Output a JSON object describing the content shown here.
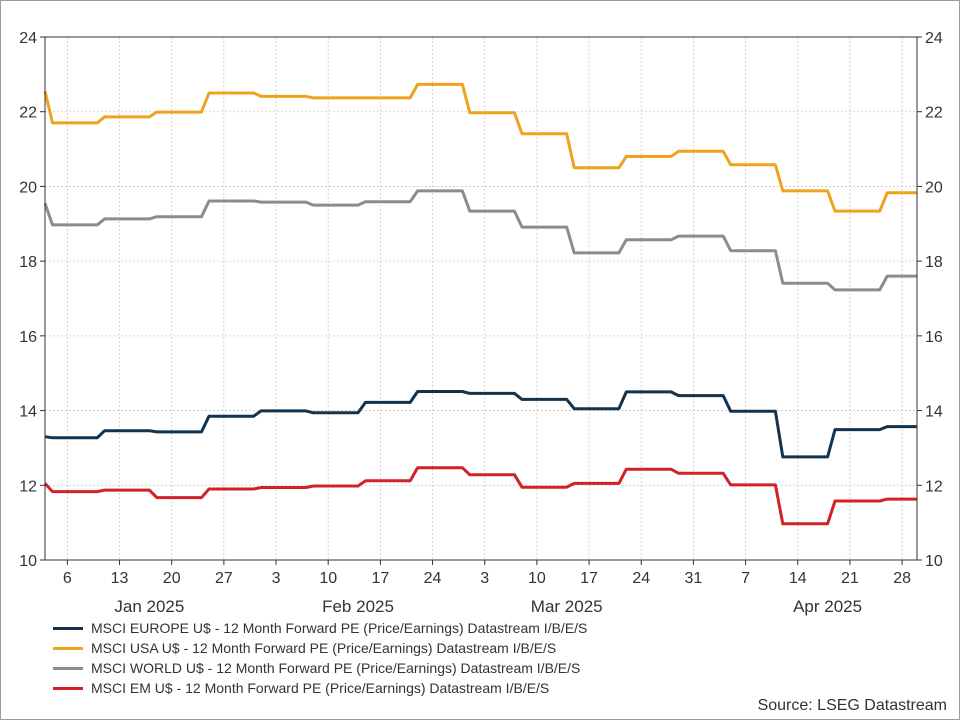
{
  "chart_data": {
    "type": "line",
    "ylim": [
      10,
      24
    ],
    "yticks": [
      10,
      12,
      14,
      16,
      18,
      20,
      22,
      24
    ],
    "xlim": [
      "2025-01-03",
      "2025-04-30"
    ],
    "x_day_ticks": [
      {
        "date": "2025-01-06",
        "label": "6"
      },
      {
        "date": "2025-01-13",
        "label": "13"
      },
      {
        "date": "2025-01-20",
        "label": "20"
      },
      {
        "date": "2025-01-27",
        "label": "27"
      },
      {
        "date": "2025-02-03",
        "label": "3"
      },
      {
        "date": "2025-02-10",
        "label": "10"
      },
      {
        "date": "2025-02-17",
        "label": "17"
      },
      {
        "date": "2025-02-24",
        "label": "24"
      },
      {
        "date": "2025-03-03",
        "label": "3"
      },
      {
        "date": "2025-03-10",
        "label": "10"
      },
      {
        "date": "2025-03-17",
        "label": "17"
      },
      {
        "date": "2025-03-24",
        "label": "24"
      },
      {
        "date": "2025-03-31",
        "label": "31"
      },
      {
        "date": "2025-04-07",
        "label": "7"
      },
      {
        "date": "2025-04-14",
        "label": "14"
      },
      {
        "date": "2025-04-21",
        "label": "21"
      },
      {
        "date": "2025-04-28",
        "label": "28"
      }
    ],
    "x_month_labels": [
      {
        "date": "2025-01-17",
        "label": "Jan 2025"
      },
      {
        "date": "2025-02-14",
        "label": "Feb 2025"
      },
      {
        "date": "2025-03-14",
        "label": "Mar 2025"
      },
      {
        "date": "2025-04-18",
        "label": "Apr 2025"
      }
    ],
    "grid": true,
    "legend_position": "bottom-left",
    "series": [
      {
        "name": "MSCI EUROPE U$ - 12 Month Forward PE (Price/Earnings) Datastream I/B/E/S",
        "color": "#12324e",
        "points": [
          [
            "2025-01-03",
            13.3
          ],
          [
            "2025-01-04",
            13.27
          ],
          [
            "2025-01-10",
            13.27
          ],
          [
            "2025-01-11",
            13.46
          ],
          [
            "2025-01-17",
            13.46
          ],
          [
            "2025-01-18",
            13.43
          ],
          [
            "2025-01-24",
            13.43
          ],
          [
            "2025-01-25",
            13.85
          ],
          [
            "2025-01-31",
            13.85
          ],
          [
            "2025-02-01",
            13.99
          ],
          [
            "2025-02-07",
            13.99
          ],
          [
            "2025-02-08",
            13.94
          ],
          [
            "2025-02-14",
            13.94
          ],
          [
            "2025-02-15",
            14.22
          ],
          [
            "2025-02-21",
            14.22
          ],
          [
            "2025-02-22",
            14.51
          ],
          [
            "2025-02-28",
            14.51
          ],
          [
            "2025-03-01",
            14.46
          ],
          [
            "2025-03-07",
            14.46
          ],
          [
            "2025-03-08",
            14.3
          ],
          [
            "2025-03-14",
            14.3
          ],
          [
            "2025-03-15",
            14.05
          ],
          [
            "2025-03-21",
            14.05
          ],
          [
            "2025-03-22",
            14.5
          ],
          [
            "2025-03-28",
            14.5
          ],
          [
            "2025-03-29",
            14.4
          ],
          [
            "2025-04-04",
            14.4
          ],
          [
            "2025-04-05",
            13.98
          ],
          [
            "2025-04-11",
            13.98
          ],
          [
            "2025-04-12",
            12.76
          ],
          [
            "2025-04-18",
            12.76
          ],
          [
            "2025-04-19",
            13.49
          ],
          [
            "2025-04-25",
            13.49
          ],
          [
            "2025-04-26",
            13.57
          ],
          [
            "2025-04-30",
            13.57
          ]
        ]
      },
      {
        "name": "MSCI USA U$ - 12 Month Forward PE (Price/Earnings) Datastream I/B/E/S",
        "color": "#efa31c",
        "points": [
          [
            "2025-01-03",
            22.55
          ],
          [
            "2025-01-04",
            21.7
          ],
          [
            "2025-01-10",
            21.7
          ],
          [
            "2025-01-11",
            21.86
          ],
          [
            "2025-01-17",
            21.86
          ],
          [
            "2025-01-18",
            21.99
          ],
          [
            "2025-01-24",
            21.99
          ],
          [
            "2025-01-25",
            22.5
          ],
          [
            "2025-01-31",
            22.5
          ],
          [
            "2025-02-01",
            22.41
          ],
          [
            "2025-02-07",
            22.41
          ],
          [
            "2025-02-08",
            22.37
          ],
          [
            "2025-02-14",
            22.37
          ],
          [
            "2025-02-15",
            22.37
          ],
          [
            "2025-02-21",
            22.37
          ],
          [
            "2025-02-22",
            22.73
          ],
          [
            "2025-02-28",
            22.73
          ],
          [
            "2025-03-01",
            21.97
          ],
          [
            "2025-03-07",
            21.97
          ],
          [
            "2025-03-08",
            21.41
          ],
          [
            "2025-03-14",
            21.41
          ],
          [
            "2025-03-15",
            20.5
          ],
          [
            "2025-03-21",
            20.5
          ],
          [
            "2025-03-22",
            20.8
          ],
          [
            "2025-03-28",
            20.8
          ],
          [
            "2025-03-29",
            20.94
          ],
          [
            "2025-04-04",
            20.94
          ],
          [
            "2025-04-05",
            20.58
          ],
          [
            "2025-04-11",
            20.58
          ],
          [
            "2025-04-12",
            19.88
          ],
          [
            "2025-04-18",
            19.88
          ],
          [
            "2025-04-19",
            19.34
          ],
          [
            "2025-04-25",
            19.34
          ],
          [
            "2025-04-26",
            19.83
          ],
          [
            "2025-04-30",
            19.83
          ]
        ]
      },
      {
        "name": "MSCI WORLD U$ - 12 Month Forward PE (Price/Earnings) Datastream I/B/E/S",
        "color": "#8c8c8c",
        "points": [
          [
            "2025-01-03",
            19.55
          ],
          [
            "2025-01-04",
            18.97
          ],
          [
            "2025-01-10",
            18.97
          ],
          [
            "2025-01-11",
            19.13
          ],
          [
            "2025-01-17",
            19.13
          ],
          [
            "2025-01-18",
            19.19
          ],
          [
            "2025-01-24",
            19.19
          ],
          [
            "2025-01-25",
            19.61
          ],
          [
            "2025-01-31",
            19.61
          ],
          [
            "2025-02-01",
            19.58
          ],
          [
            "2025-02-07",
            19.58
          ],
          [
            "2025-02-08",
            19.5
          ],
          [
            "2025-02-14",
            19.5
          ],
          [
            "2025-02-15",
            19.59
          ],
          [
            "2025-02-21",
            19.59
          ],
          [
            "2025-02-22",
            19.88
          ],
          [
            "2025-02-28",
            19.88
          ],
          [
            "2025-03-01",
            19.34
          ],
          [
            "2025-03-07",
            19.34
          ],
          [
            "2025-03-08",
            18.91
          ],
          [
            "2025-03-14",
            18.91
          ],
          [
            "2025-03-15",
            18.22
          ],
          [
            "2025-03-21",
            18.22
          ],
          [
            "2025-03-22",
            18.57
          ],
          [
            "2025-03-28",
            18.57
          ],
          [
            "2025-03-29",
            18.67
          ],
          [
            "2025-04-04",
            18.67
          ],
          [
            "2025-04-05",
            18.28
          ],
          [
            "2025-04-11",
            18.28
          ],
          [
            "2025-04-12",
            17.41
          ],
          [
            "2025-04-18",
            17.41
          ],
          [
            "2025-04-19",
            17.23
          ],
          [
            "2025-04-25",
            17.23
          ],
          [
            "2025-04-26",
            17.6
          ],
          [
            "2025-04-30",
            17.6
          ]
        ]
      },
      {
        "name": "MSCI EM U$ - 12 Month Forward PE (Price/Earnings) Datastream I/B/E/S",
        "color": "#d42128",
        "points": [
          [
            "2025-01-03",
            12.05
          ],
          [
            "2025-01-04",
            11.83
          ],
          [
            "2025-01-10",
            11.83
          ],
          [
            "2025-01-11",
            11.87
          ],
          [
            "2025-01-17",
            11.87
          ],
          [
            "2025-01-18",
            11.67
          ],
          [
            "2025-01-24",
            11.67
          ],
          [
            "2025-01-25",
            11.9
          ],
          [
            "2025-01-31",
            11.9
          ],
          [
            "2025-02-01",
            11.94
          ],
          [
            "2025-02-07",
            11.94
          ],
          [
            "2025-02-08",
            11.98
          ],
          [
            "2025-02-14",
            11.98
          ],
          [
            "2025-02-15",
            12.12
          ],
          [
            "2025-02-21",
            12.12
          ],
          [
            "2025-02-22",
            12.47
          ],
          [
            "2025-02-28",
            12.47
          ],
          [
            "2025-03-01",
            12.28
          ],
          [
            "2025-03-07",
            12.28
          ],
          [
            "2025-03-08",
            11.95
          ],
          [
            "2025-03-14",
            11.95
          ],
          [
            "2025-03-15",
            12.05
          ],
          [
            "2025-03-21",
            12.05
          ],
          [
            "2025-03-22",
            12.43
          ],
          [
            "2025-03-28",
            12.43
          ],
          [
            "2025-03-29",
            12.32
          ],
          [
            "2025-04-04",
            12.32
          ],
          [
            "2025-04-05",
            12.01
          ],
          [
            "2025-04-11",
            12.01
          ],
          [
            "2025-04-12",
            10.97
          ],
          [
            "2025-04-18",
            10.97
          ],
          [
            "2025-04-19",
            11.58
          ],
          [
            "2025-04-25",
            11.58
          ],
          [
            "2025-04-26",
            11.63
          ],
          [
            "2025-04-30",
            11.63
          ]
        ]
      }
    ],
    "source": "Source: LSEG Datastream"
  }
}
